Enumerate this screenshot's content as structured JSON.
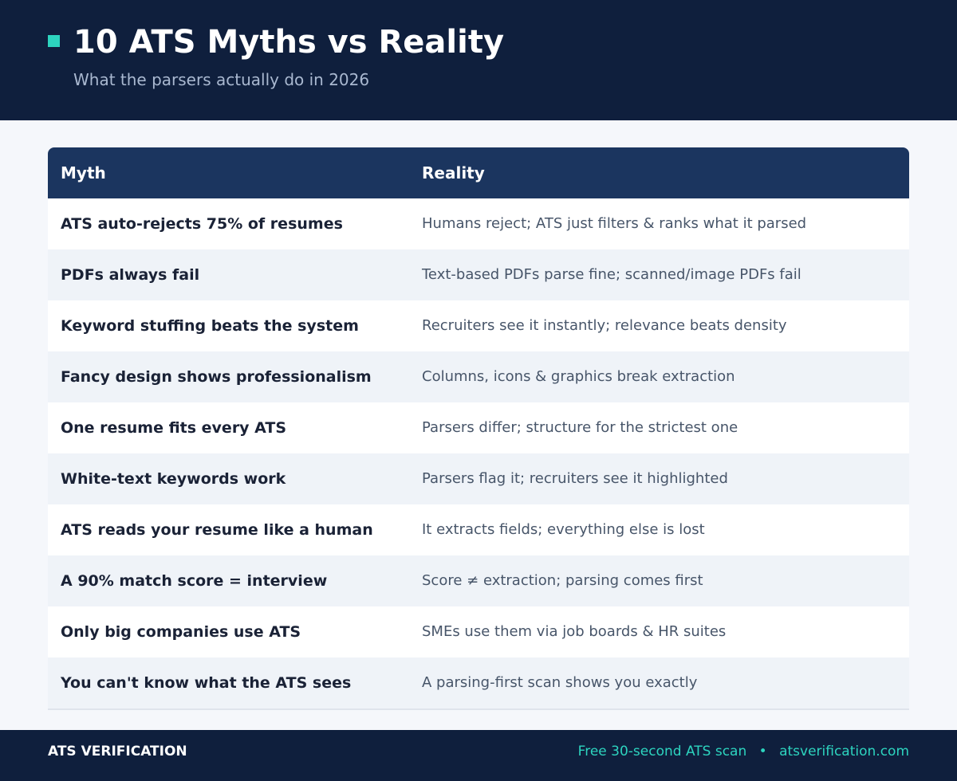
{
  "header": {
    "title": "10 ATS Myths vs Reality",
    "subtitle": "What the parsers actually do in 2026"
  },
  "table": {
    "columns": [
      "Myth",
      "Reality"
    ],
    "rows": [
      [
        "ATS auto-rejects 75% of resumes",
        "Humans reject; ATS just filters & ranks what it parsed"
      ],
      [
        "PDFs always fail",
        "Text-based PDFs parse fine; scanned/image PDFs fail"
      ],
      [
        "Keyword stuffing beats the system",
        "Recruiters see it instantly; relevance beats density"
      ],
      [
        "Fancy design shows professionalism",
        "Columns, icons & graphics break extraction"
      ],
      [
        "One resume fits every ATS",
        "Parsers differ; structure for the strictest one"
      ],
      [
        "White-text keywords work",
        "Parsers flag it; recruiters see it highlighted"
      ],
      [
        "ATS reads your resume like a human",
        "It extracts fields; everything else is lost"
      ],
      [
        "A 90% match score = interview",
        "Score ≠ extraction; parsing comes first"
      ],
      [
        "Only big companies use ATS",
        "SMEs use them via job boards & HR suites"
      ],
      [
        "You can't know what the ATS sees",
        "A parsing-first scan shows you exactly"
      ]
    ]
  },
  "footer": {
    "brand": "ATS VERIFICATION",
    "cta": "Free 30-second ATS scan",
    "separator": "•",
    "url": "atsverification.com"
  }
}
